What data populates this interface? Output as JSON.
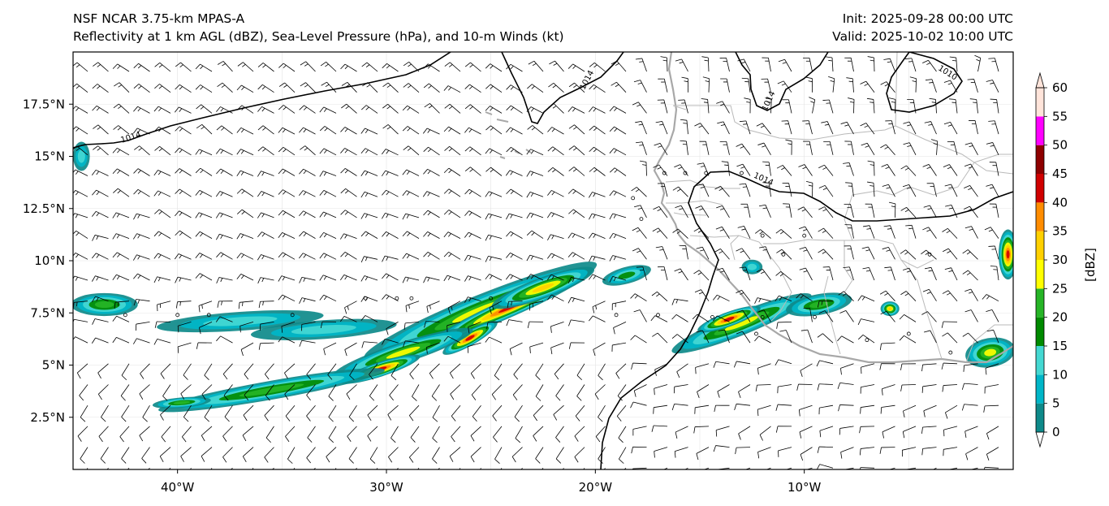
{
  "header": {
    "title_line1": "NSF NCAR 3.75-km MPAS-A",
    "title_line2": "Reflectivity at 1 km AGL (dBZ), Sea-Level Pressure (hPa), and 10-m Winds (kt)",
    "init_line": "Init: 2025-09-28 00:00 UTC",
    "valid_line": "Valid: 2025-10-02 10:00 UTC"
  },
  "map": {
    "lon_range": [
      -45,
      0
    ],
    "lat_range": [
      0,
      20
    ],
    "lat_ticks": [
      {
        "value": 17.5,
        "label": "17.5°N"
      },
      {
        "value": 15,
        "label": "15°N"
      },
      {
        "value": 12.5,
        "label": "12.5°N"
      },
      {
        "value": 10,
        "label": "10°N"
      },
      {
        "value": 7.5,
        "label": "7.5°N"
      },
      {
        "value": 5,
        "label": "5°N"
      },
      {
        "value": 2.5,
        "label": "2.5°N"
      }
    ],
    "lon_ticks": [
      {
        "value": -40,
        "label": "40°W"
      },
      {
        "value": -30,
        "label": "30°W"
      },
      {
        "value": -20,
        "label": "20°W"
      },
      {
        "value": -10,
        "label": "10°W"
      }
    ],
    "isobar_labels": [
      {
        "text": "1014",
        "lon": -42.2,
        "lat": 15.8,
        "angle": -18
      },
      {
        "text": "1014",
        "lon": -20.3,
        "lat": 18.6,
        "angle": -62
      },
      {
        "text": "1014",
        "lon": -11.6,
        "lat": 17.6,
        "angle": -65
      },
      {
        "text": "1014",
        "lon": -12.0,
        "lat": 13.8,
        "angle": 24
      },
      {
        "text": "1010",
        "lon": -3.2,
        "lat": 18.9,
        "angle": 32
      }
    ],
    "colors": {
      "isobar": "#000000",
      "coastline": "#a8a8a8",
      "border": "#b4b4b4",
      "grid": "#e4e4e4",
      "barb": "#000000"
    }
  },
  "colorbar": {
    "label": "[dBZ]",
    "ticks": [
      "0",
      "5",
      "10",
      "15",
      "20",
      "25",
      "30",
      "35",
      "40",
      "45",
      "50",
      "55",
      "60"
    ],
    "colors": [
      "#ffffff",
      "#0e8a8a",
      "#00b6c8",
      "#44d8d2",
      "#008a00",
      "#26b526",
      "#ffff00",
      "#ffd000",
      "#ff8c00",
      "#d00000",
      "#8e0000",
      "#ff00ff",
      "#ffe4da"
    ]
  },
  "reflectivity_cells": [
    {
      "lon": -25.5,
      "lat": 7.6,
      "rx": 6.0,
      "ry": 0.75,
      "angle": -22,
      "level": 6
    },
    {
      "lon": -24.0,
      "lat": 7.8,
      "rx": 4.2,
      "ry": 0.45,
      "angle": -24,
      "level": 9
    },
    {
      "lon": -22.5,
      "lat": 8.7,
      "rx": 2.6,
      "ry": 0.5,
      "angle": -20,
      "level": 7
    },
    {
      "lon": -26.0,
      "lat": 6.3,
      "rx": 1.5,
      "ry": 0.35,
      "angle": -30,
      "level": 9
    },
    {
      "lon": -29.2,
      "lat": 5.6,
      "rx": 3.5,
      "ry": 0.5,
      "angle": -18,
      "level": 6
    },
    {
      "lon": -30.3,
      "lat": 4.8,
      "rx": 2.0,
      "ry": 0.35,
      "angle": -18,
      "level": 9
    },
    {
      "lon": -35.5,
      "lat": 3.8,
      "rx": 5.5,
      "ry": 0.45,
      "angle": -10,
      "level": 5
    },
    {
      "lon": -39.8,
      "lat": 3.2,
      "rx": 1.4,
      "ry": 0.25,
      "angle": -5,
      "level": 5
    },
    {
      "lon": -13.0,
      "lat": 7.0,
      "rx": 3.6,
      "ry": 0.55,
      "angle": -22,
      "level": 6
    },
    {
      "lon": -13.6,
      "lat": 7.2,
      "rx": 1.6,
      "ry": 0.35,
      "angle": -20,
      "level": 9
    },
    {
      "lon": -9.3,
      "lat": 7.9,
      "rx": 1.6,
      "ry": 0.5,
      "angle": -10,
      "level": 5
    },
    {
      "lon": -12.5,
      "lat": 9.7,
      "rx": 0.5,
      "ry": 0.35,
      "angle": 0,
      "level": 3
    },
    {
      "lon": -5.9,
      "lat": 7.7,
      "rx": 0.45,
      "ry": 0.35,
      "angle": 0,
      "level": 7
    },
    {
      "lon": -1.1,
      "lat": 5.6,
      "rx": 1.2,
      "ry": 0.7,
      "angle": -10,
      "level": 6
    },
    {
      "lon": -0.25,
      "lat": 10.3,
      "rx": 0.45,
      "ry": 1.2,
      "angle": 0,
      "level": 9
    },
    {
      "lon": -43.5,
      "lat": 7.9,
      "rx": 1.6,
      "ry": 0.55,
      "angle": 0,
      "level": 5
    },
    {
      "lon": -37.0,
      "lat": 7.1,
      "rx": 4.0,
      "ry": 0.45,
      "angle": -4,
      "level": 3
    },
    {
      "lon": -33.0,
      "lat": 6.7,
      "rx": 3.5,
      "ry": 0.45,
      "angle": -4,
      "level": 3
    },
    {
      "lon": -18.5,
      "lat": 9.3,
      "rx": 1.2,
      "ry": 0.4,
      "angle": -15,
      "level": 4
    },
    {
      "lon": -44.6,
      "lat": 15.0,
      "rx": 0.4,
      "ry": 0.7,
      "angle": 0,
      "level": 3
    }
  ]
}
